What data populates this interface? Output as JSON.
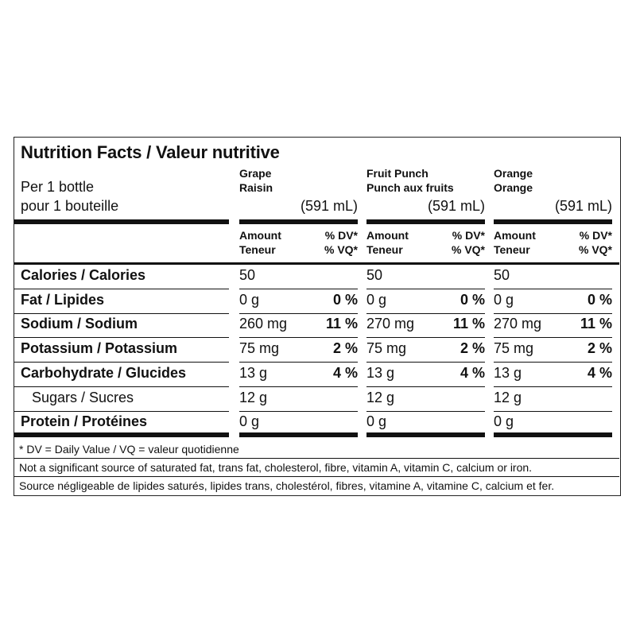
{
  "title": "Nutrition Facts / Valeur nutritive",
  "serving": {
    "en": "Per 1 bottle",
    "fr": "pour 1 bouteille"
  },
  "columns": [
    {
      "name_en": "Grape",
      "name_fr": "Raisin",
      "volume": "(591 mL)"
    },
    {
      "name_en": "Fruit Punch",
      "name_fr": "Punch aux fruits",
      "volume": "(591 mL)"
    },
    {
      "name_en": "Orange",
      "name_fr": "Orange",
      "volume": "(591 mL)"
    }
  ],
  "headers": {
    "amount_en": "Amount",
    "amount_fr": "Teneur",
    "dv_en": "% DV*",
    "dv_fr": "% VQ*"
  },
  "rows": [
    {
      "label": "Calories / Calories",
      "sub": false,
      "values": [
        {
          "amount": "50",
          "dv": ""
        },
        {
          "amount": "50",
          "dv": ""
        },
        {
          "amount": "50",
          "dv": ""
        }
      ]
    },
    {
      "label": "Fat / Lipides",
      "sub": false,
      "values": [
        {
          "amount": "0 g",
          "dv": "0 %"
        },
        {
          "amount": "0 g",
          "dv": "0 %"
        },
        {
          "amount": "0 g",
          "dv": "0 %"
        }
      ]
    },
    {
      "label": "Sodium / Sodium",
      "sub": false,
      "values": [
        {
          "amount": "260 mg",
          "dv": "11 %"
        },
        {
          "amount": "270 mg",
          "dv": "11 %"
        },
        {
          "amount": "270 mg",
          "dv": "11 %"
        }
      ]
    },
    {
      "label": "Potassium / Potassium",
      "sub": false,
      "values": [
        {
          "amount": "75 mg",
          "dv": "2 %"
        },
        {
          "amount": "75 mg",
          "dv": "2 %"
        },
        {
          "amount": "75 mg",
          "dv": "2 %"
        }
      ]
    },
    {
      "label": "Carbohydrate / Glucides",
      "sub": false,
      "values": [
        {
          "amount": "13 g",
          "dv": "4 %"
        },
        {
          "amount": "13 g",
          "dv": "4 %"
        },
        {
          "amount": "13 g",
          "dv": "4 %"
        }
      ]
    },
    {
      "label": "Sugars / Sucres",
      "sub": true,
      "values": [
        {
          "amount": "12 g",
          "dv": ""
        },
        {
          "amount": "12 g",
          "dv": ""
        },
        {
          "amount": "12 g",
          "dv": ""
        }
      ]
    },
    {
      "label": "Protein / Protéines",
      "sub": false,
      "values": [
        {
          "amount": "0 g",
          "dv": ""
        },
        {
          "amount": "0 g",
          "dv": ""
        },
        {
          "amount": "0 g",
          "dv": ""
        }
      ]
    }
  ],
  "footnotes": {
    "dv": "* DV = Daily Value / VQ = valeur quotidienne",
    "en": "Not a significant source of saturated fat, trans fat, cholesterol, fibre, vitamin A, vitamin C, calcium or iron.",
    "fr": "Source négligeable de lipides saturés, lipides trans, cholestérol, fibres, vitamine A, vitamine C, calcium et fer."
  }
}
